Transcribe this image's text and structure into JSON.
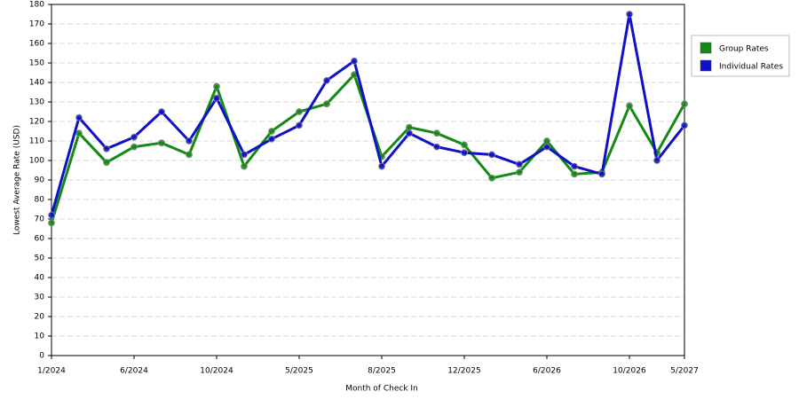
{
  "chart_data": {
    "type": "line",
    "x_label": "Month of Check In",
    "y_label": "Lowest Average Rate (USD)",
    "categories": [
      "1/2024",
      null,
      null,
      "6/2024",
      null,
      null,
      "10/2024",
      null,
      null,
      "5/2025",
      null,
      null,
      "8/2025",
      null,
      null,
      "12/2025",
      null,
      null,
      "6/2026",
      null,
      null,
      "10/2026",
      null,
      "5/2027"
    ],
    "series": [
      {
        "name": "Group Rates",
        "color": "#138a13",
        "values": [
          68,
          114,
          99,
          107,
          109,
          103,
          138,
          97,
          115,
          125,
          129,
          144,
          102,
          117,
          114,
          108,
          91,
          94,
          110,
          93,
          94,
          128,
          104,
          129
        ]
      },
      {
        "name": "Individual Rates",
        "color": "#1010c8",
        "values": [
          72,
          122,
          106,
          112,
          125,
          110,
          132,
          103,
          111,
          118,
          141,
          151,
          97,
          114,
          107,
          104,
          103,
          98,
          107,
          97,
          93,
          175,
          100,
          118
        ]
      }
    ],
    "ylim": [
      0,
      180
    ],
    "yticks": [
      0,
      10,
      20,
      30,
      40,
      50,
      60,
      70,
      80,
      90,
      100,
      110,
      120,
      130,
      140,
      150,
      160,
      170,
      180
    ],
    "grid": true,
    "legend": "right"
  }
}
